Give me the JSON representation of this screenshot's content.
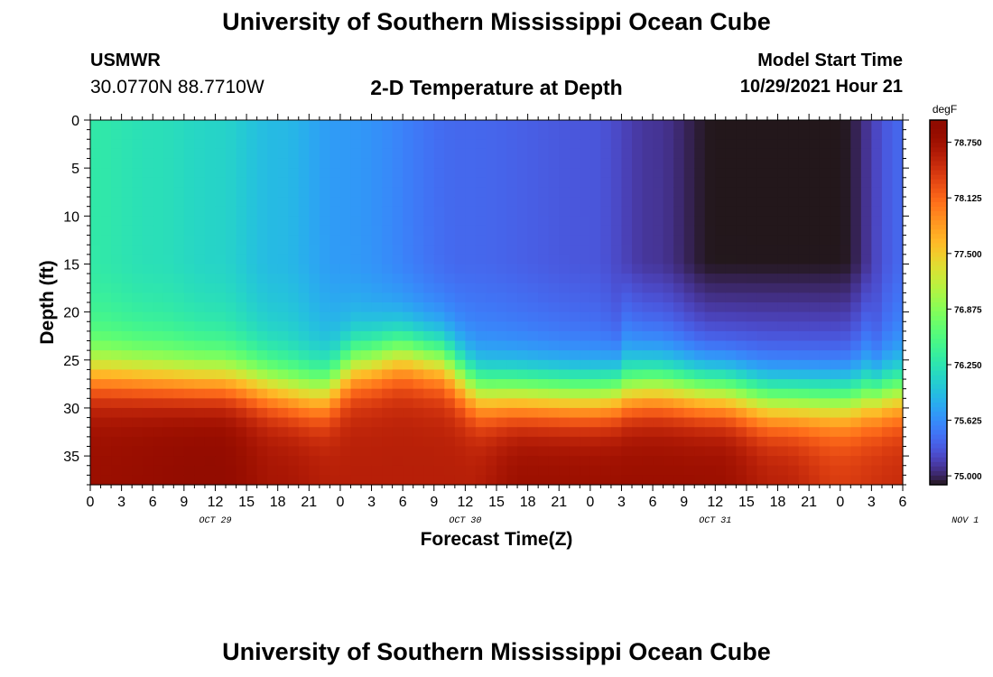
{
  "header": {
    "title": "University of Southern Mississippi Ocean Cube",
    "station_id": "USMWR",
    "coords": "30.0770N  88.7710W",
    "plot_title": "2-D Temperature at Depth",
    "start_label": "Model Start Time",
    "start_value": "10/29/2021 Hour 21"
  },
  "footer": {
    "title": "University of Southern Mississippi Ocean Cube"
  },
  "chart_data": {
    "type": "heatmap",
    "title": "2-D Temperature at Depth",
    "xlabel": "Forecast Time(Z)",
    "ylabel": "Depth (ft)",
    "colorbar_unit": "degF",
    "x_ticks": [
      "0",
      "3",
      "6",
      "9",
      "12",
      "15",
      "18",
      "21",
      "0",
      "3",
      "6",
      "9",
      "12",
      "15",
      "18",
      "21",
      "0",
      "3",
      "6",
      "9",
      "12",
      "15",
      "18",
      "21",
      "0",
      "3",
      "6"
    ],
    "day_labels": [
      "OCT 29",
      "OCT 30",
      "OCT 31",
      "NOV 1"
    ],
    "day_label_hours": [
      12,
      36,
      60,
      84
    ],
    "xlim_hours": [
      0,
      78
    ],
    "y_ticks": [
      0,
      5,
      10,
      15,
      20,
      25,
      30,
      35
    ],
    "ylim_ft": [
      0,
      38
    ],
    "y_inverted": true,
    "colorbar_ticks": [
      "78.750",
      "78.125",
      "77.500",
      "76.875",
      "76.250",
      "75.625",
      "75.000"
    ],
    "colorbar_range": [
      74.9,
      79.0
    ],
    "colorscale": "turbo",
    "surface_temperature_degF": [
      [
        0,
        76.3
      ],
      [
        6,
        76.2
      ],
      [
        12,
        76.1
      ],
      [
        18,
        75.9
      ],
      [
        24,
        75.7
      ],
      [
        36,
        75.4
      ],
      [
        48,
        75.3
      ],
      [
        54,
        75.1
      ],
      [
        60,
        74.9
      ],
      [
        66,
        74.9
      ],
      [
        72,
        74.9
      ],
      [
        78,
        75.4
      ]
    ],
    "deep_temperature_degF": [
      [
        0,
        78.8
      ],
      [
        12,
        78.9
      ],
      [
        18,
        78.7
      ],
      [
        24,
        78.6
      ],
      [
        36,
        78.6
      ],
      [
        42,
        78.8
      ],
      [
        60,
        78.8
      ],
      [
        66,
        78.6
      ],
      [
        72,
        78.4
      ],
      [
        78,
        78.5
      ]
    ],
    "thermocline_depth_ft": [
      [
        0,
        26.5
      ],
      [
        12,
        27
      ],
      [
        22,
        28.5
      ],
      [
        26,
        25.5
      ],
      [
        30,
        24.5
      ],
      [
        33,
        25
      ],
      [
        38,
        28.5
      ],
      [
        48,
        28.8
      ],
      [
        54,
        28
      ],
      [
        60,
        28.5
      ],
      [
        66,
        29.5
      ],
      [
        72,
        29.5
      ],
      [
        78,
        28.5
      ]
    ]
  }
}
